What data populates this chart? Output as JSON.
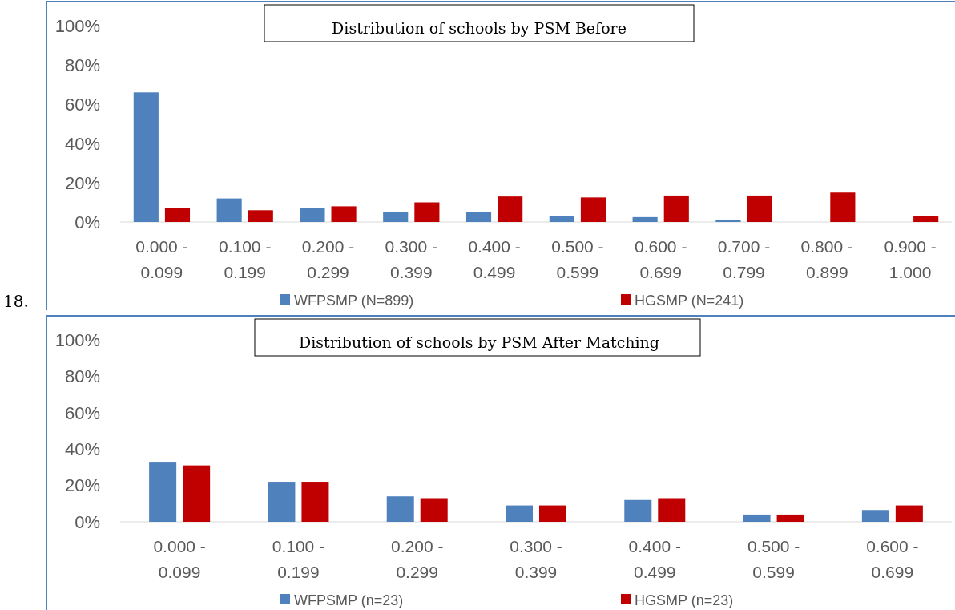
{
  "chart_data": [
    {
      "type": "bar",
      "title": "Distribution of schools by PSM Before",
      "annotations": [
        "18."
      ],
      "categories": [
        "0.000 - 0.099",
        "0.100 - 0.199",
        "0.200 - 0.299",
        "0.300 - 0.399",
        "0.400 - 0.499",
        "0.500 - 0.599",
        "0.600 - 0.699",
        "0.700 - 0.799",
        "0.800 - 0.899",
        "0.900 - 1.000"
      ],
      "series": [
        {
          "name": "WFPSMP (N=899)",
          "color": "#4f81bd",
          "values": [
            66,
            12,
            7,
            5,
            5,
            3,
            2.5,
            1,
            0,
            0
          ]
        },
        {
          "name": "HGSMP (N=241)",
          "color": "#c00000",
          "values": [
            7,
            6,
            8,
            10,
            13,
            12.5,
            13.5,
            13.5,
            15,
            3
          ]
        }
      ],
      "ylim": [
        0,
        100
      ],
      "yticks": [
        {
          "value": 0,
          "label": "0%"
        },
        {
          "value": 20,
          "label": "20%"
        },
        {
          "value": 40,
          "label": "40%"
        },
        {
          "value": 60,
          "label": "60%"
        },
        {
          "value": 80,
          "label": "80%"
        },
        {
          "value": 100,
          "label": "100%"
        }
      ],
      "grid": false,
      "legend": "bottom"
    },
    {
      "type": "bar",
      "title": "Distribution of schools by PSM After Matching",
      "categories": [
        "0.000 - 0.099",
        "0.100 - 0.199",
        "0.200 - 0.299",
        "0.300 - 0.399",
        "0.400 - 0.499",
        "0.500 - 0.599",
        "0.600 - 0.699"
      ],
      "series": [
        {
          "name": "WFPSMP (n=23)",
          "color": "#4f81bd",
          "values": [
            33,
            22,
            14,
            9,
            12,
            4,
            6.5
          ]
        },
        {
          "name": "HGSMP (n=23)",
          "color": "#c00000",
          "values": [
            31,
            22,
            13,
            9,
            13,
            4,
            9
          ]
        }
      ],
      "ylim": [
        0,
        100
      ],
      "yticks": [
        {
          "value": 0,
          "label": "0%"
        },
        {
          "value": 20,
          "label": "20%"
        },
        {
          "value": 40,
          "label": "40%"
        },
        {
          "value": 60,
          "label": "60%"
        },
        {
          "value": 80,
          "label": "80%"
        },
        {
          "value": 100,
          "label": "100%"
        }
      ],
      "grid": false,
      "legend": "bottom"
    }
  ]
}
